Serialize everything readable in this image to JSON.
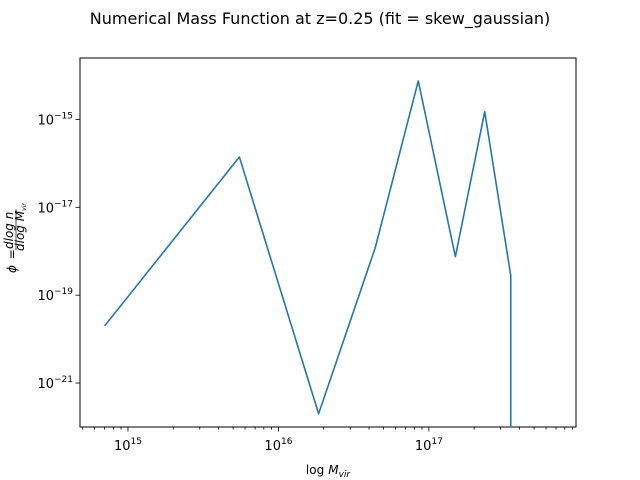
{
  "chart_data": {
    "type": "line",
    "title": "Numerical Mass Function at z=0.25 (fit = skew_gaussian)",
    "xlabel": {
      "base": "log",
      "var": "M",
      "sub": "vir"
    },
    "ylabel": {
      "lhs": "ϕ",
      "eq": "=",
      "num": "dlog n",
      "den_base": "dlog M",
      "den_sub": "vir"
    },
    "x_scale": "log",
    "y_scale": "log",
    "xlim": [
      480000000000000.0,
      9.5e+17
    ],
    "ylim": [
      1e-22,
      2.5e-14
    ],
    "x_ticks": [
      {
        "value": 1000000000000000.0,
        "label": "10",
        "exp": "15"
      },
      {
        "value": 1e+16,
        "label": "10",
        "exp": "16"
      },
      {
        "value": 1e+17,
        "label": "10",
        "exp": "17"
      }
    ],
    "y_ticks": [
      {
        "value": 1e-21,
        "label": "10",
        "exp": "−21"
      },
      {
        "value": 1e-19,
        "label": "10",
        "exp": "−19"
      },
      {
        "value": 1e-17,
        "label": "10",
        "exp": "−17"
      },
      {
        "value": 1e-15,
        "label": "10",
        "exp": "−15"
      }
    ],
    "series": [
      {
        "color": "#1f77b4",
        "x": [
          700000000000000.0,
          5500000000000000.0,
          1.85e+16,
          4.4e+16,
          8.5e+16,
          1.5e+17,
          2.35e+17,
          3.5e+17,
          3.5e+17
        ],
        "y": [
          2e-20,
          1.4e-16,
          2e-22,
          1.2e-18,
          7.5e-15,
          7.5e-19,
          1.5e-15,
          2.8e-19,
          1e-22
        ]
      }
    ],
    "grid": false,
    "legend": "none"
  }
}
